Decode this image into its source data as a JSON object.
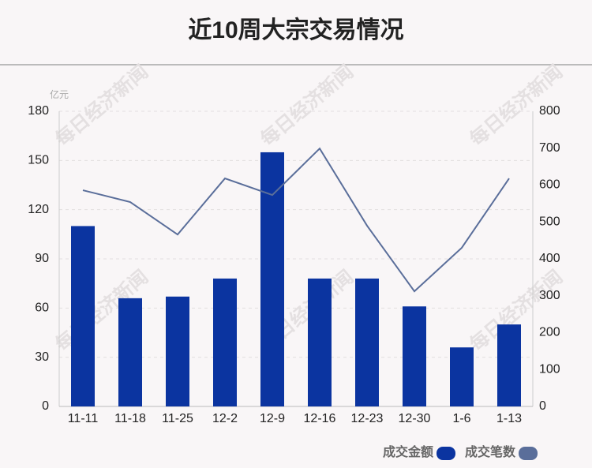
{
  "chart_data": {
    "type": "combo",
    "title": "近10周大宗交易情况",
    "y_unit": "亿元",
    "watermark": "每日经济新闻",
    "categories": [
      "11-11",
      "11-18",
      "11-25",
      "12-2",
      "12-9",
      "12-16",
      "12-23",
      "12-30",
      "1-6",
      "1-13"
    ],
    "series": [
      {
        "name": "成交金额",
        "type": "bar",
        "color": "#0b34a0",
        "values": [
          110,
          66,
          67,
          78,
          155,
          78,
          78,
          61,
          36,
          50
        ]
      },
      {
        "name": "成交笔数",
        "type": "line",
        "axis": "y2",
        "color": "#5a6e9a",
        "values": [
          586,
          554,
          466,
          618,
          573,
          699,
          490,
          312,
          430,
          618
        ]
      }
    ],
    "ylim": [
      0,
      180
    ],
    "yticks": [
      0,
      30,
      60,
      90,
      120,
      150,
      180
    ],
    "y2lim": [
      0,
      800
    ],
    "y2ticks": [
      0,
      100,
      200,
      300,
      400,
      500,
      600,
      700,
      800
    ],
    "grid": true
  }
}
